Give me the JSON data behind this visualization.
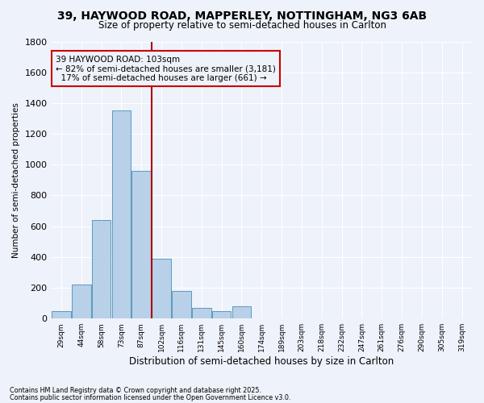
{
  "title_line1": "39, HAYWOOD ROAD, MAPPERLEY, NOTTINGHAM, NG3 6AB",
  "title_line2": "Size of property relative to semi-detached houses in Carlton",
  "xlabel": "Distribution of semi-detached houses by size in Carlton",
  "ylabel": "Number of semi-detached properties",
  "footnote1": "Contains HM Land Registry data © Crown copyright and database right 2025.",
  "footnote2": "Contains public sector information licensed under the Open Government Licence v3.0.",
  "annotation_title": "39 HAYWOOD ROAD: 103sqm",
  "annotation_line1": "← 82% of semi-detached houses are smaller (3,181)",
  "annotation_line2": "17% of semi-detached houses are larger (661) →",
  "property_size_bin": 5,
  "bar_color": "#b8d0e8",
  "bar_edge_color": "#5a9abf",
  "vline_color": "#aa0000",
  "annotation_box_color": "#cc0000",
  "background_color": "#eef2fa",
  "categories": [
    "29sqm",
    "44sqm",
    "58sqm",
    "73sqm",
    "87sqm",
    "102sqm",
    "116sqm",
    "131sqm",
    "145sqm",
    "160sqm",
    "174sqm",
    "189sqm",
    "203sqm",
    "218sqm",
    "232sqm",
    "247sqm",
    "261sqm",
    "276sqm",
    "290sqm",
    "305sqm",
    "319sqm"
  ],
  "values": [
    50,
    220,
    640,
    1350,
    960,
    390,
    180,
    70,
    50,
    80,
    0,
    0,
    0,
    0,
    0,
    0,
    0,
    0,
    0,
    0,
    0
  ],
  "ylim": [
    0,
    1800
  ],
  "yticks": [
    0,
    200,
    400,
    600,
    800,
    1000,
    1200,
    1400,
    1600,
    1800
  ]
}
